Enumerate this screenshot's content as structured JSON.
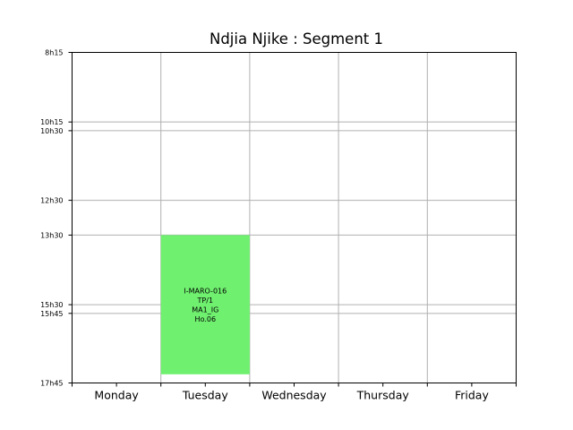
{
  "chart_data": {
    "type": "timetable",
    "title": "Ndjia Njike : Segment 1",
    "days": [
      "Monday",
      "Tuesday",
      "Wednesday",
      "Thursday",
      "Friday"
    ],
    "y_range_hours": [
      8.25,
      17.75
    ],
    "y_ticks": [
      {
        "label": "8h15",
        "hours": 8.25
      },
      {
        "label": "10h15",
        "hours": 10.25
      },
      {
        "label": "10h30",
        "hours": 10.5
      },
      {
        "label": "12h30",
        "hours": 12.5
      },
      {
        "label": "13h30",
        "hours": 13.5
      },
      {
        "label": "15h30",
        "hours": 15.5
      },
      {
        "label": "15h45",
        "hours": 15.75
      },
      {
        "label": "17h45",
        "hours": 17.75
      }
    ],
    "grid": true,
    "events": [
      {
        "day": "Tuesday",
        "start_hours": 13.5,
        "end_hours": 17.5,
        "color": "#6ff06f",
        "lines": [
          "I-MARO-016",
          "TP/1",
          "MA1_IG",
          "Ho.06"
        ]
      }
    ]
  }
}
